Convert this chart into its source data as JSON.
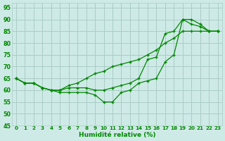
{
  "xlabel": "Humidité relative (%)",
  "xlim": [
    -0.5,
    23.5
  ],
  "ylim": [
    45,
    97
  ],
  "yticks": [
    45,
    50,
    55,
    60,
    65,
    70,
    75,
    80,
    85,
    90,
    95
  ],
  "xticks": [
    0,
    1,
    2,
    3,
    4,
    5,
    6,
    7,
    8,
    9,
    10,
    11,
    12,
    13,
    14,
    15,
    16,
    17,
    18,
    19,
    20,
    21,
    22,
    23
  ],
  "bg_color": "#ceeae6",
  "grid_color": "#aaccc8",
  "line_color": "#008800",
  "s1": [
    65,
    63,
    63,
    61,
    60,
    60,
    62,
    63,
    65,
    67,
    68,
    70,
    71,
    72,
    73,
    75,
    77,
    80,
    82,
    85,
    85,
    85,
    85,
    85
  ],
  "s2": [
    65,
    63,
    63,
    61,
    60,
    60,
    61,
    61,
    61,
    60,
    60,
    61,
    62,
    63,
    65,
    73,
    74,
    84,
    85,
    90,
    90,
    88,
    85,
    85
  ],
  "s3": [
    65,
    63,
    63,
    61,
    60,
    59,
    59,
    59,
    59,
    58,
    55,
    55,
    59,
    60,
    63,
    64,
    65,
    72,
    75,
    90,
    88,
    87,
    85,
    85
  ]
}
